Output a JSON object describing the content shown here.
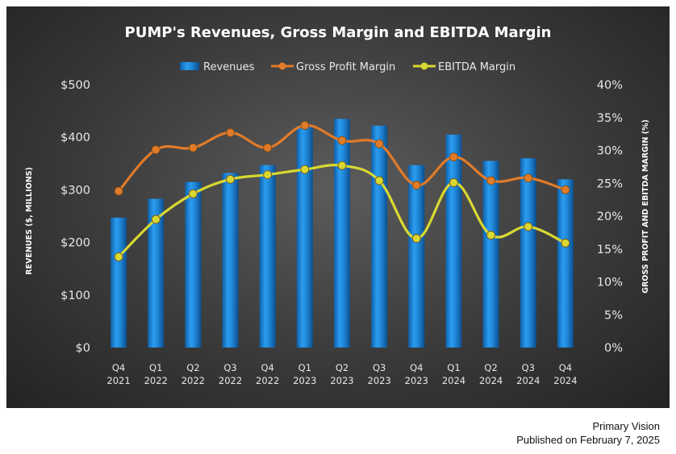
{
  "chart_data": {
    "type": "bar",
    "title": "PUMP's Revenues, Gross Margin and EBITDA Margin",
    "categories": [
      [
        "Q4",
        "2021"
      ],
      [
        "Q1",
        "2022"
      ],
      [
        "Q2",
        "2022"
      ],
      [
        "Q3",
        "2022"
      ],
      [
        "Q4",
        "2022"
      ],
      [
        "Q1",
        "2023"
      ],
      [
        "Q2",
        "2023"
      ],
      [
        "Q3",
        "2023"
      ],
      [
        "Q4",
        "2023"
      ],
      [
        "Q1",
        "2024"
      ],
      [
        "Q2",
        "2024"
      ],
      [
        "Q3",
        "2024"
      ],
      [
        "Q4",
        "2024"
      ]
    ],
    "ylabel_left": "REVENUES ($, MILLIONS)",
    "ylabel_right": "GROSS PROFIT AND EBITDA MARGIN (%)",
    "ylim_left": [
      0,
      500
    ],
    "ylim_right": [
      0,
      40
    ],
    "left_ticks": [
      "$0",
      "$100",
      "$200",
      "$300",
      "$400",
      "$500"
    ],
    "right_ticks": [
      "0%",
      "5%",
      "10%",
      "15%",
      "20%",
      "25%",
      "30%",
      "35%",
      "40%"
    ],
    "legend_placement": "top",
    "series": [
      {
        "name": "Revenues",
        "type": "bar",
        "axis": "left",
        "color": "#1f8ad8",
        "values": [
          247,
          283,
          315,
          332,
          347,
          422,
          435,
          422,
          347,
          405,
          355,
          360,
          320
        ]
      },
      {
        "name": "Gross Profit Margin",
        "type": "line",
        "axis": "right",
        "color": "#e07b2a",
        "values": [
          23.8,
          30.1,
          30.4,
          32.7,
          30.4,
          33.8,
          31.5,
          31.0,
          24.7,
          29.0,
          25.4,
          25.8,
          24.0
        ]
      },
      {
        "name": "EBITDA Margin",
        "type": "line",
        "axis": "right",
        "color": "#d8d832",
        "values": [
          13.8,
          19.5,
          23.4,
          25.6,
          26.3,
          27.1,
          27.7,
          25.4,
          16.6,
          25.1,
          17.1,
          18.4,
          15.9
        ]
      }
    ]
  },
  "footer": {
    "source": "Primary Vision",
    "published": "Published on February 7, 2025"
  }
}
